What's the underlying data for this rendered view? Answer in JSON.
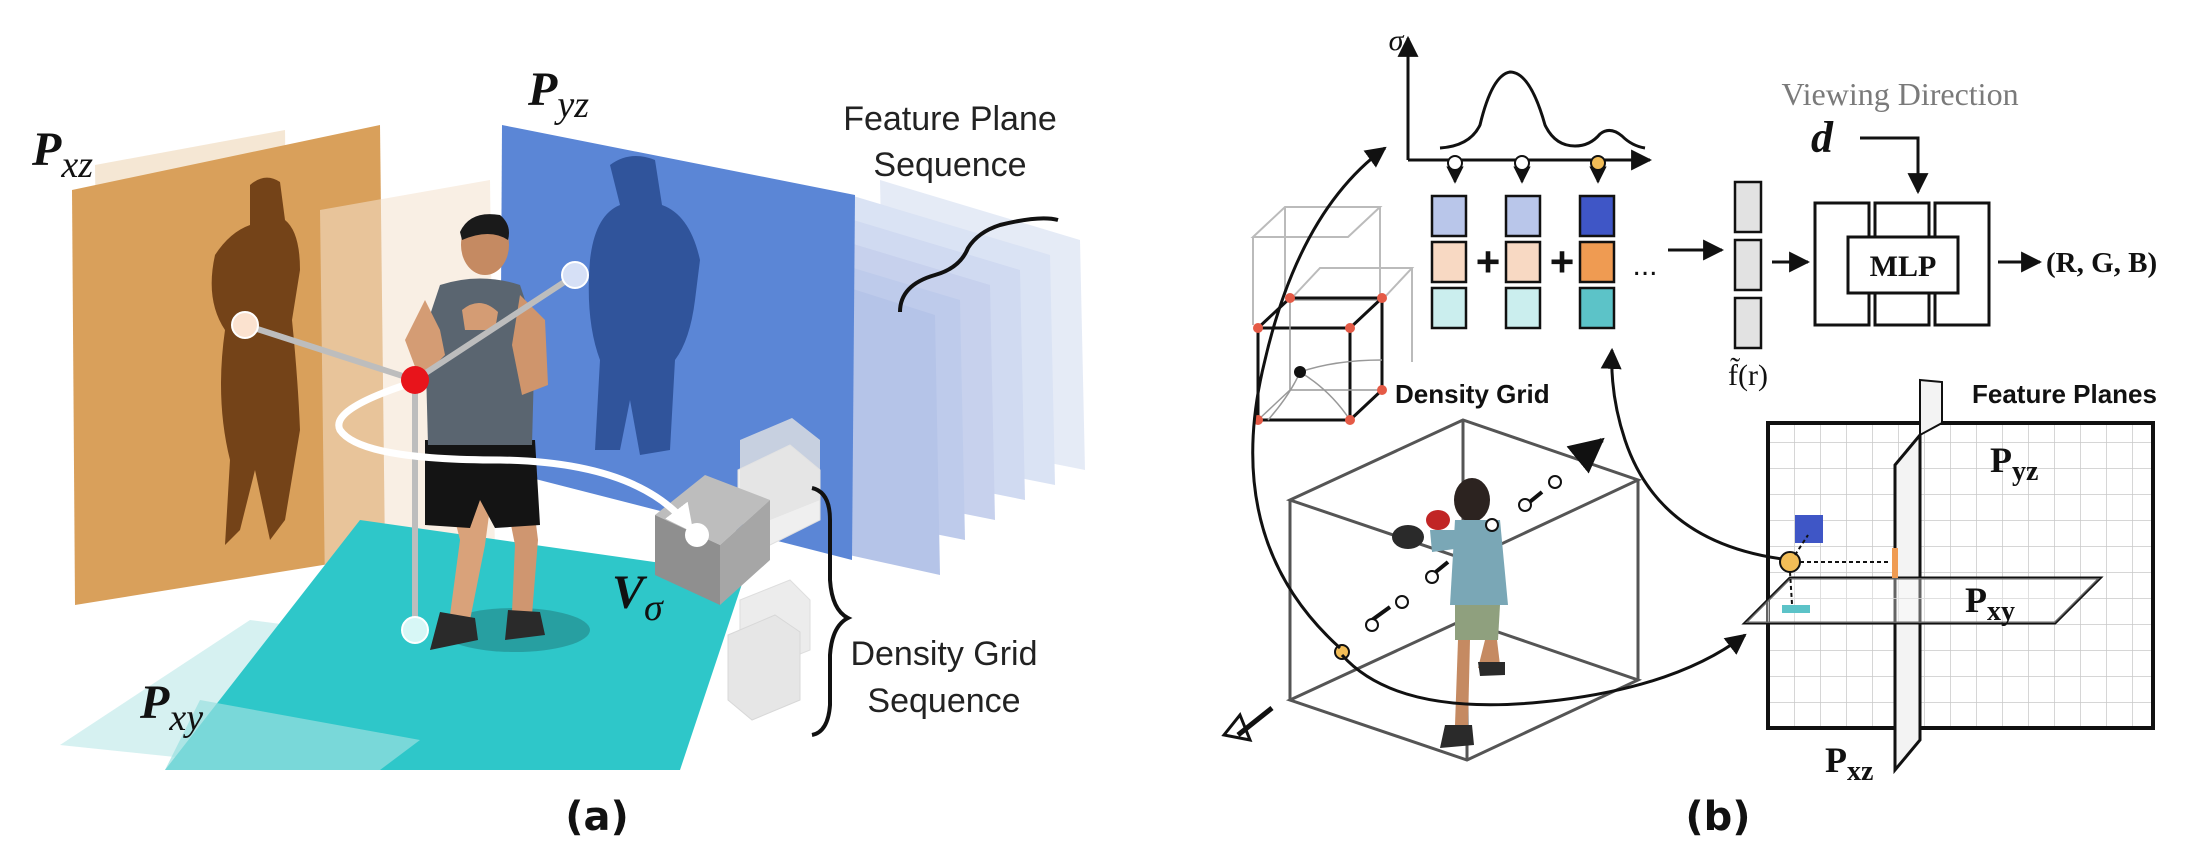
{
  "panel_a": {
    "caption": "(a)",
    "labels": {
      "p_xz_main": "P",
      "p_xz_sub": "xz",
      "p_yz_main": "P",
      "p_yz_sub": "yz",
      "p_xy_main": "P",
      "p_xy_sub": "xy",
      "v_main": "V",
      "v_sub": "σ",
      "feature_seq_line1": "Feature Plane",
      "feature_seq_line2": "Sequence",
      "density_seq_line1": "Density Grid",
      "density_seq_line2": "Sequence"
    },
    "colors": {
      "p_xz": "#d9a05b",
      "p_yz": "#5b86d6",
      "p_xy": "#2ec7c9",
      "joint_red": "#e8141b"
    }
  },
  "panel_b": {
    "caption": "(b)",
    "labels": {
      "sigma": "σ",
      "viewing_direction": "Viewing Direction",
      "d": "d",
      "mlp": "MLP",
      "rgb": "(R, G, B)",
      "plus1": "+",
      "plus2": "+",
      "ellipsis": "...",
      "f_r": "f̃(r)",
      "density_grid": "Density Grid",
      "feature_planes": "Feature Planes",
      "pyz_main": "P",
      "pyz_sub": "yz",
      "pxy_main": "P",
      "pxy_sub": "xy",
      "pxz_main": "P",
      "pxz_sub": "xz"
    },
    "colors": {
      "blue": "#3f56c6",
      "orange": "#ef9b52",
      "teal": "#5cc3c8",
      "blue_light": "#b9c6ea",
      "orange_light": "#f8d9c3",
      "teal_light": "#cbeeee",
      "grid_red": "#e55a46"
    }
  }
}
